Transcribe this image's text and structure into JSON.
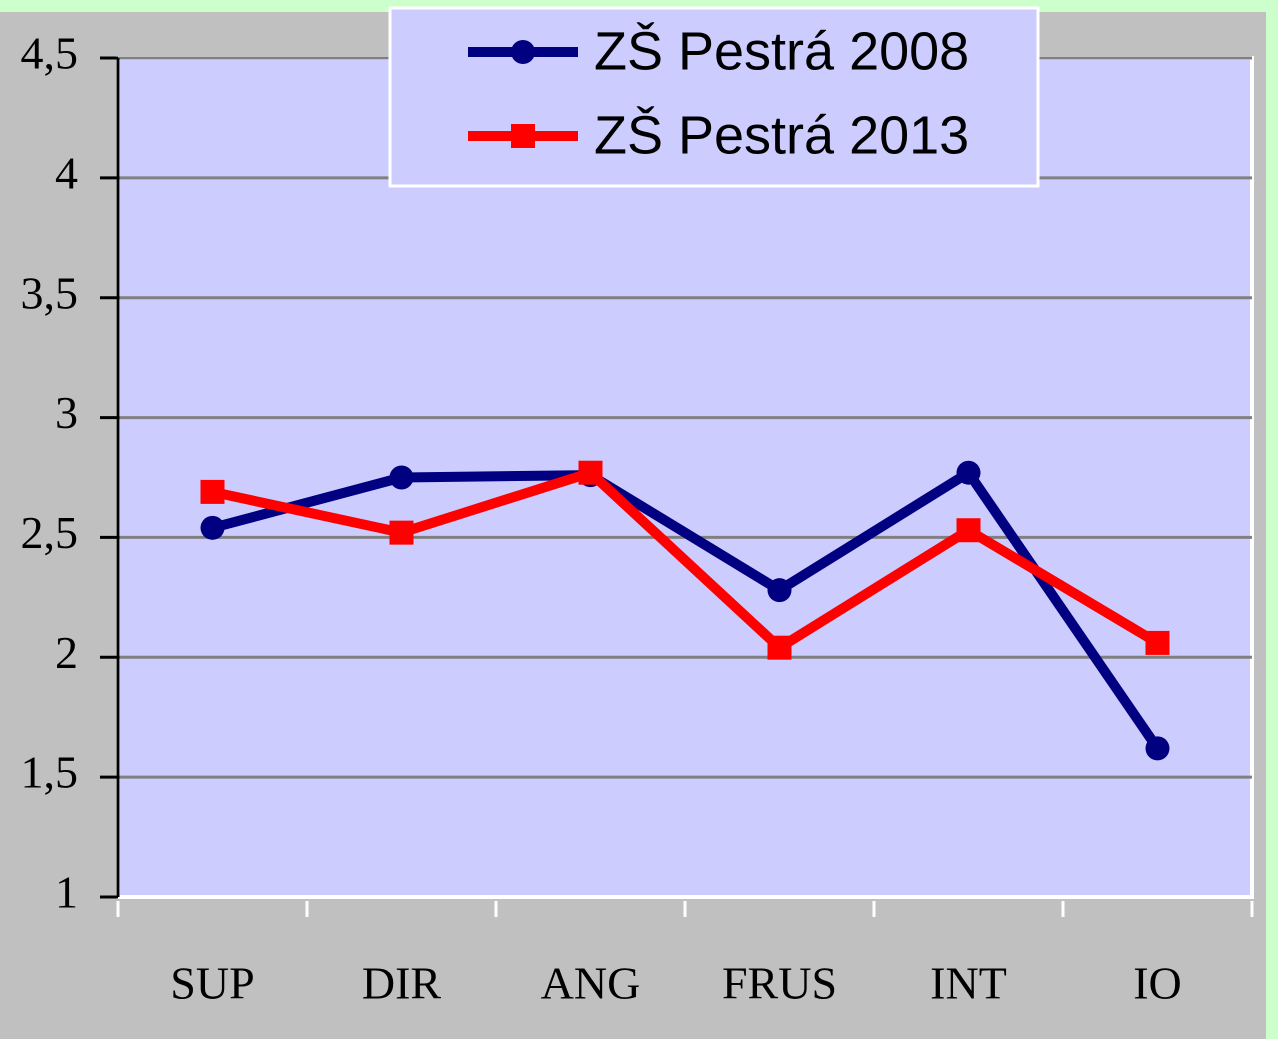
{
  "chart_data": {
    "type": "line",
    "categories": [
      "SUP",
      "DIR",
      "ANG",
      "FRUS",
      "INT",
      "IO"
    ],
    "series": [
      {
        "name": "ZŠ Pestrá 2008",
        "color": "#000080",
        "marker": "circle",
        "values": [
          2.54,
          2.75,
          2.76,
          2.28,
          2.77,
          1.62
        ]
      },
      {
        "name": "ZŠ Pestrá 2013",
        "color": "#ff0000",
        "marker": "square",
        "values": [
          2.69,
          2.52,
          2.77,
          2.04,
          2.53,
          2.06
        ]
      }
    ],
    "ylim": [
      1,
      4.5
    ],
    "yticks": [
      1,
      {
        "value": 1.5,
        "label": "1,5"
      },
      2,
      {
        "value": 2.5,
        "label": "2,5"
      },
      3,
      {
        "value": 3.5,
        "label": "3,5"
      },
      4,
      {
        "value": 4.5,
        "label": "4,5"
      }
    ],
    "grid": true
  }
}
